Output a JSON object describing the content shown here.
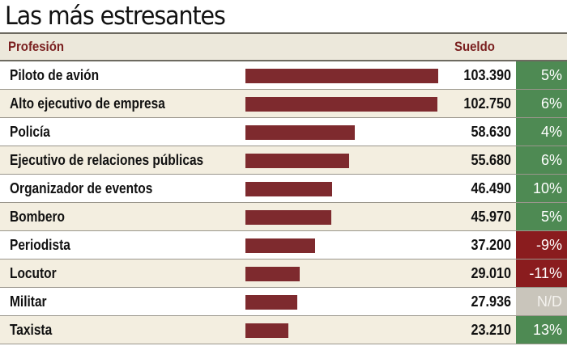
{
  "chart_data": {
    "type": "bar",
    "orientation": "horizontal",
    "title": "Las más estresantes",
    "column_headers": {
      "profession": "Profesión",
      "salary": "Sueldo"
    },
    "xlim": [
      0,
      103390
    ],
    "categories": [
      "Piloto de avión",
      "Alto ejecutivo de empresa",
      "Policía",
      "Ejecutivo de relaciones públicas",
      "Organizador de eventos",
      "Bombero",
      "Periodista",
      "Locutor",
      "Militar",
      "Taxista"
    ],
    "values": [
      103390,
      102750,
      58630,
      55680,
      46490,
      45970,
      37200,
      29010,
      27936,
      23210
    ],
    "value_labels": [
      "103.390",
      "102.750",
      "58.630",
      "55.680",
      "46.490",
      "45.970",
      "37.200",
      "29.010",
      "27.936",
      "23.210"
    ],
    "changes": [
      "5%",
      "6%",
      "4%",
      "6%",
      "10%",
      "5%",
      "-9%",
      "-11%",
      "N/D",
      "13%"
    ]
  },
  "colors": {
    "bar": "#7e2a2e",
    "positive": "#4e8a53",
    "negative": "#8a1c1e",
    "not_available": "#c9c5bb",
    "header_text": "#7a1f1f"
  }
}
